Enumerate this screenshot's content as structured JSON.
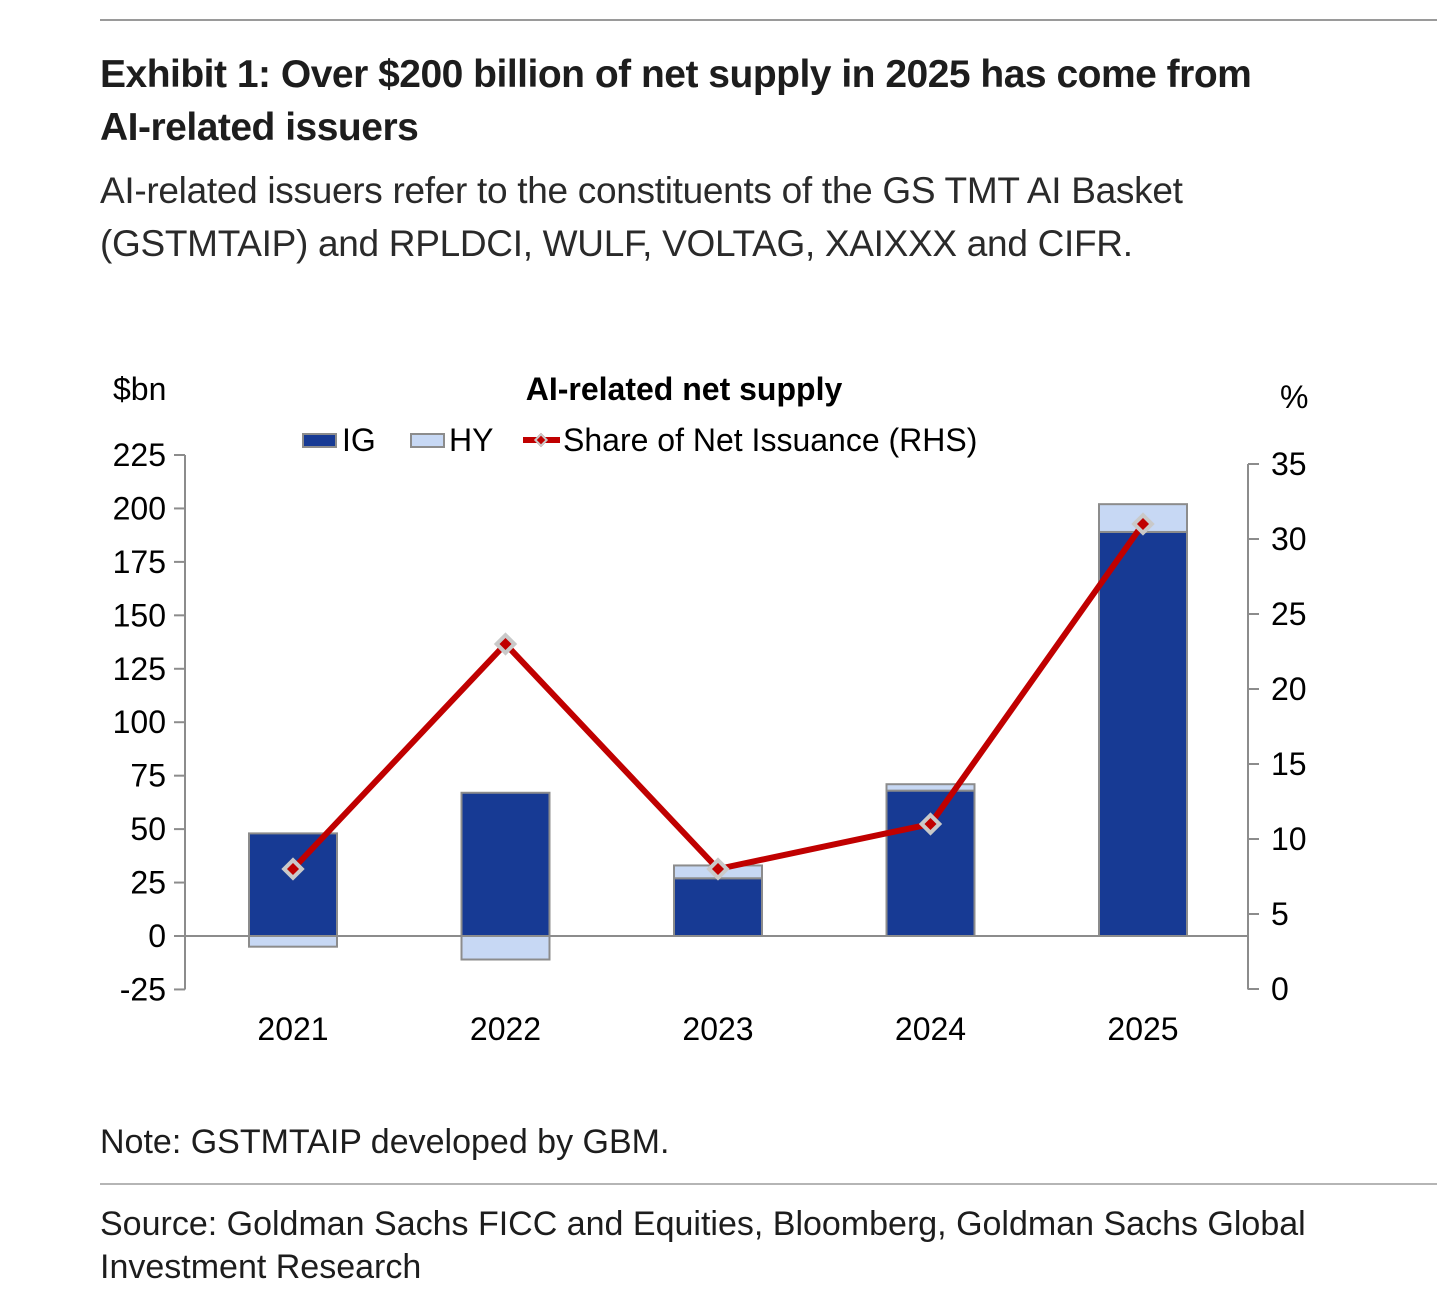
{
  "header": {
    "title": "Exhibit 1: Over $200 billion of net supply in 2025 has come from AI-related issuers",
    "subtitle": "AI-related issuers refer to the constituents of the GS TMT AI Basket (GSTMTAIP) and RPLDCI, WULF, VOLTAG, XAIXXX and CIFR."
  },
  "chart_data": {
    "type": "bar",
    "title": "AI-related net supply",
    "categories": [
      "2021",
      "2022",
      "2023",
      "2024",
      "2025"
    ],
    "series": [
      {
        "name": "IG",
        "type": "bar",
        "axis": "left",
        "color": "#173a94",
        "values": [
          48,
          67,
          27,
          68,
          189
        ]
      },
      {
        "name": "HY",
        "type": "bar",
        "axis": "left",
        "color": "#c7d8f4",
        "values": [
          -5,
          -11,
          6,
          3,
          13
        ]
      },
      {
        "name": "Share of Net Issuance (RHS)",
        "type": "line",
        "axis": "right",
        "color": "#c00000",
        "values": [
          8,
          23,
          8,
          11,
          31
        ]
      }
    ],
    "left_axis": {
      "unit": "$bn",
      "min": -25,
      "max": 225,
      "step": 25,
      "ticks": [
        225,
        200,
        175,
        150,
        125,
        100,
        75,
        50,
        25,
        0,
        -25
      ]
    },
    "right_axis": {
      "unit": "%",
      "min": 0,
      "max": 35,
      "step": 5,
      "ticks": [
        35,
        30,
        25,
        20,
        15,
        10,
        5,
        0
      ]
    },
    "legend_position": "top",
    "grid": false,
    "axis_color": "#8c8c8c",
    "bar_border_color": "#8c8c8c",
    "marker": "diamond",
    "marker_outline_color": "#c9c9c9",
    "text_color": "#000000"
  },
  "footer": {
    "note": "Note: GSTMTAIP developed by GBM.",
    "source": "Source: Goldman Sachs FICC and Equities, Bloomberg, Goldman Sachs Global Investment Research"
  }
}
